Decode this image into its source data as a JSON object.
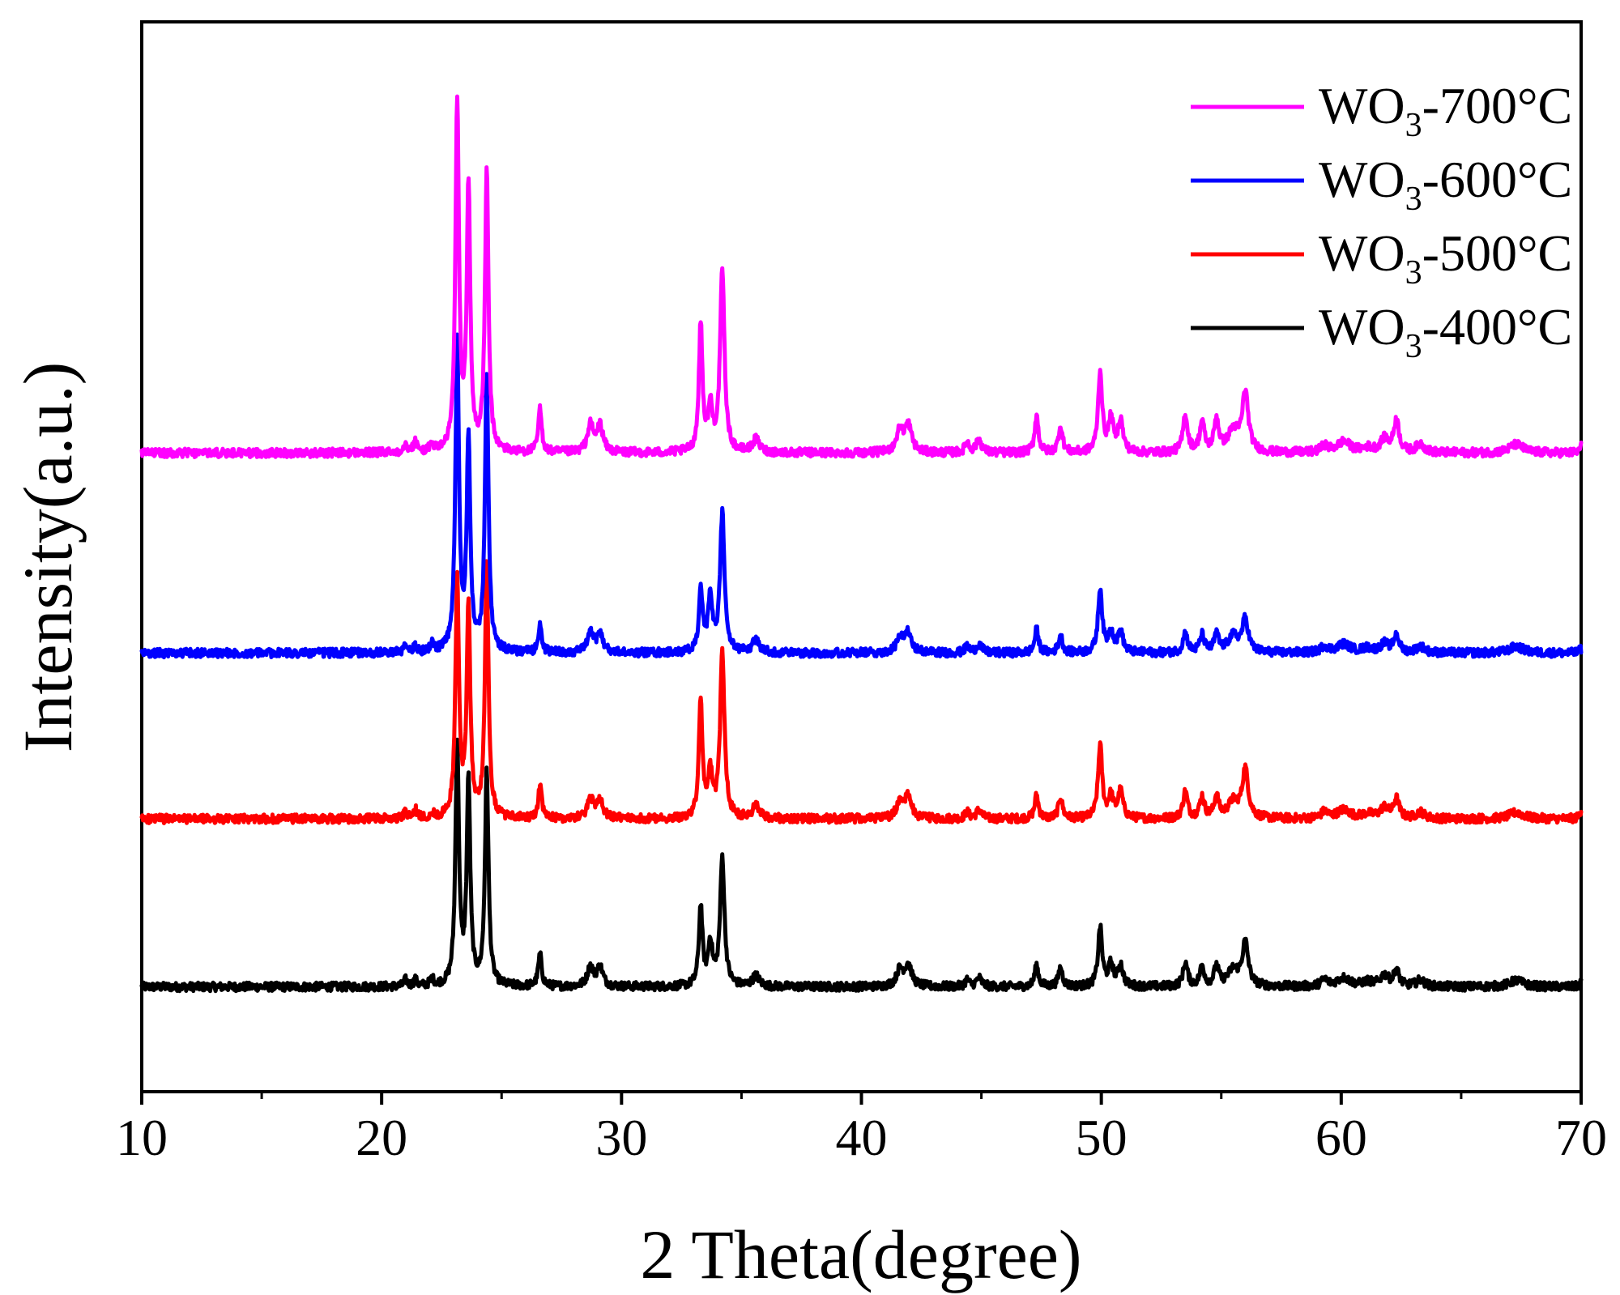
{
  "chart_data": {
    "type": "line",
    "title": "",
    "xlabel": "2 Theta(degree)",
    "ylabel": "Intensity(a.u.)",
    "xlim": [
      10,
      70
    ],
    "ylim": [
      0,
      1
    ],
    "grid": false,
    "legend_position": "top-right",
    "x_ticks": [
      10,
      20,
      30,
      40,
      50,
      60,
      70
    ],
    "x_tick_labels": [
      "10",
      "20",
      "30",
      "40",
      "50",
      "60",
      "70"
    ],
    "y_ticks_shown": false,
    "profile": {
      "baseline_noise": 0.004,
      "peaks": [
        {
          "x": 21.0,
          "w": 0.12
        },
        {
          "x": 21.4,
          "w": 0.12
        },
        {
          "x": 22.1,
          "w": 0.15
        },
        {
          "x": 23.15,
          "w": 0.13
        },
        {
          "x": 23.62,
          "w": 0.13
        },
        {
          "x": 24.38,
          "w": 0.13
        },
        {
          "x": 26.6,
          "w": 0.13
        },
        {
          "x": 28.7,
          "w": 0.22
        },
        {
          "x": 29.1,
          "w": 0.22
        },
        {
          "x": 33.3,
          "w": 0.13
        },
        {
          "x": 33.7,
          "w": 0.16
        },
        {
          "x": 34.2,
          "w": 0.16
        },
        {
          "x": 35.6,
          "w": 0.25
        },
        {
          "x": 41.6,
          "w": 0.25
        },
        {
          "x": 41.95,
          "w": 0.25
        },
        {
          "x": 44.4,
          "w": 0.15
        },
        {
          "x": 44.9,
          "w": 0.2
        },
        {
          "x": 47.3,
          "w": 0.14
        },
        {
          "x": 48.3,
          "w": 0.15
        },
        {
          "x": 49.95,
          "w": 0.15
        },
        {
          "x": 50.4,
          "w": 0.18
        },
        {
          "x": 50.8,
          "w": 0.18
        },
        {
          "x": 53.5,
          "w": 0.17
        },
        {
          "x": 54.2,
          "w": 0.17
        },
        {
          "x": 54.8,
          "w": 0.17
        },
        {
          "x": 55.5,
          "w": 0.4
        },
        {
          "x": 56.0,
          "w": 0.22
        },
        {
          "x": 59.3,
          "w": 0.25
        },
        {
          "x": 60.1,
          "w": 0.5
        },
        {
          "x": 61.1,
          "w": 0.4
        },
        {
          "x": 61.8,
          "w": 0.3
        },
        {
          "x": 62.3,
          "w": 0.2
        },
        {
          "x": 63.3,
          "w": 0.3
        },
        {
          "x": 67.3,
          "w": 0.5
        },
        {
          "x": 70.0,
          "w": 0.12
        }
      ]
    },
    "series": [
      {
        "name": "WO3-400°C",
        "legend_main": "WO",
        "legend_sub": "3",
        "legend_suffix": "-400°C",
        "color": "#000000",
        "baseline": 0.098,
        "heights": [
          0.006,
          0.006,
          0.006,
          0.225,
          0.19,
          0.2,
          0.03,
          0.018,
          0.018,
          0.075,
          0.04,
          0.12,
          0.01,
          0.015,
          0.02,
          0.006,
          0.008,
          0.02,
          0.018,
          0.055,
          0.02,
          0.02,
          0.022,
          0.018,
          0.018,
          0.015,
          0.04,
          0.006,
          0.008,
          0.004,
          0.01,
          0.015,
          0.006,
          0.006,
          0.004
        ]
      },
      {
        "name": "WO3-500°C",
        "legend_main": "WO",
        "legend_sub": "3",
        "legend_suffix": "-500°C",
        "color": "#ff0000",
        "baseline": 0.255,
        "heights": [
          0.006,
          0.008,
          0.004,
          0.22,
          0.2,
          0.235,
          0.03,
          0.018,
          0.018,
          0.11,
          0.04,
          0.155,
          0.012,
          0.015,
          0.02,
          0.006,
          0.008,
          0.022,
          0.02,
          0.068,
          0.02,
          0.025,
          0.025,
          0.02,
          0.02,
          0.015,
          0.045,
          0.006,
          0.008,
          0.004,
          0.01,
          0.018,
          0.006,
          0.006,
          0.008
        ]
      },
      {
        "name": "WO3-600°C",
        "legend_main": "WO",
        "legend_sub": "3",
        "legend_suffix": "-600°C",
        "color": "#0000ff",
        "baseline": 0.41,
        "heights": [
          0.006,
          0.006,
          0.008,
          0.29,
          0.2,
          0.26,
          0.025,
          0.018,
          0.018,
          0.06,
          0.05,
          0.13,
          0.012,
          0.012,
          0.02,
          0.006,
          0.008,
          0.022,
          0.016,
          0.06,
          0.02,
          0.02,
          0.018,
          0.016,
          0.016,
          0.015,
          0.03,
          0.006,
          0.008,
          0.004,
          0.008,
          0.016,
          0.006,
          0.006,
          0.004
        ]
      },
      {
        "name": "WO3-700°C",
        "legend_main": "WO",
        "legend_sub": "3",
        "legend_suffix": "-700°C",
        "color": "#ff00ff",
        "baseline": 0.597,
        "heights": [
          0.01,
          0.01,
          0.006,
          0.325,
          0.245,
          0.26,
          0.04,
          0.025,
          0.025,
          0.12,
          0.04,
          0.17,
          0.012,
          0.02,
          0.025,
          0.01,
          0.012,
          0.035,
          0.025,
          0.075,
          0.03,
          0.03,
          0.035,
          0.028,
          0.03,
          0.02,
          0.055,
          0.006,
          0.01,
          0.004,
          0.012,
          0.03,
          0.008,
          0.008,
          0.006
        ]
      }
    ]
  }
}
